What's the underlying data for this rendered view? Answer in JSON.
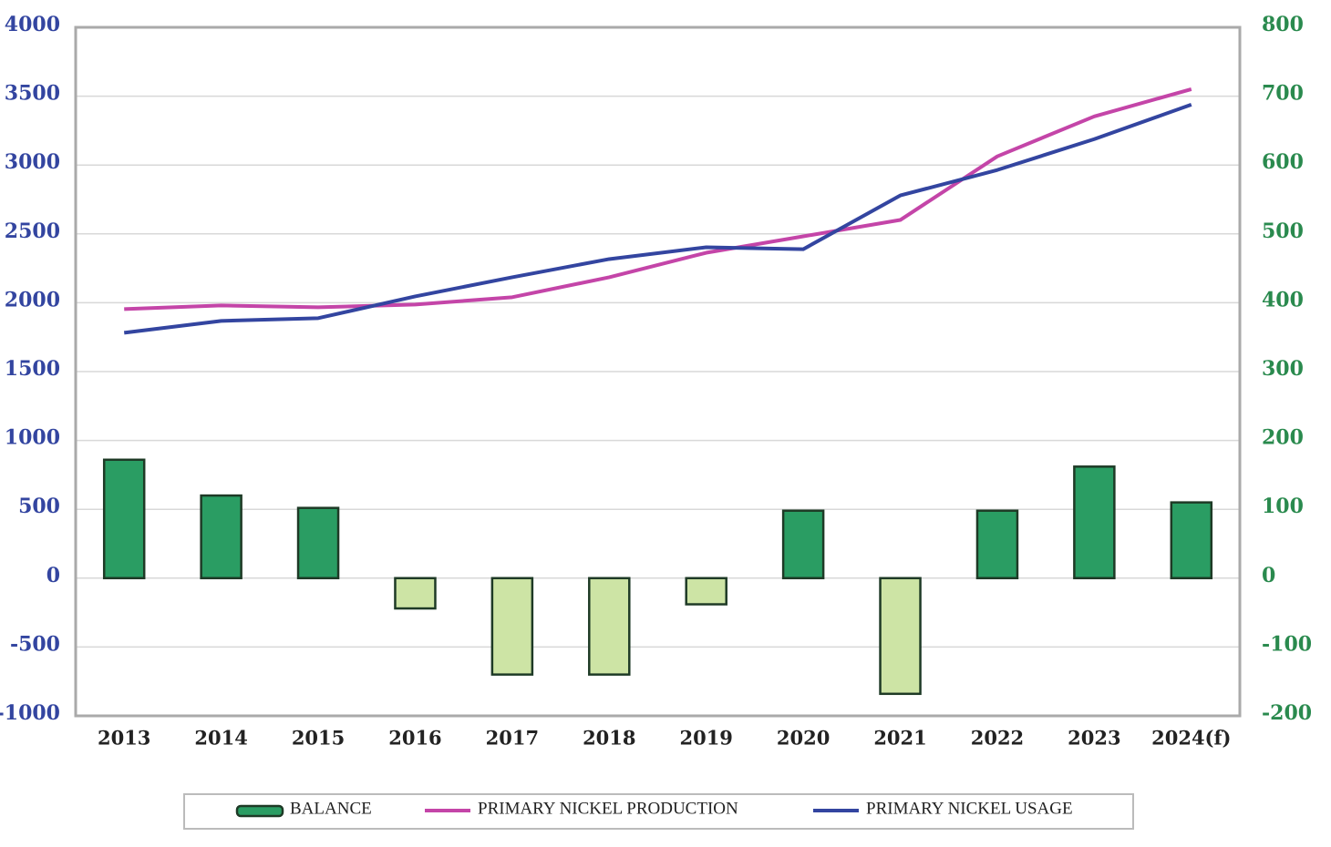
{
  "chart_data": {
    "type": "bar-line",
    "categories": [
      "2013",
      "2014",
      "2015",
      "2016",
      "2017",
      "2018",
      "2019",
      "2020",
      "2021",
      "2022",
      "2023",
      "2024(f)"
    ],
    "series": [
      {
        "name": "BALANCE",
        "type": "bar",
        "axis": "y2",
        "color": "#2a9d63",
        "negative_color": "#cde4a5",
        "values": [
          172,
          120,
          102,
          -44,
          -140,
          -140,
          -38,
          98,
          -168,
          98,
          162,
          110
        ]
      },
      {
        "name": "PRIMARY NICKEL PRODUCTION",
        "type": "line",
        "color": "#c445a8",
        "values": [
          1954,
          1980,
          1967,
          1987,
          2040,
          2185,
          2363,
          2482,
          2601,
          3063,
          3353,
          3551
        ]
      },
      {
        "name": "PRIMARY NICKEL USAGE",
        "type": "line",
        "color": "#3345a0",
        "values": [
          1782,
          1868,
          1888,
          2046,
          2185,
          2317,
          2403,
          2389,
          2779,
          2964,
          3188,
          3439
        ]
      }
    ],
    "ylim": [
      -1000,
      4000
    ],
    "yticks": [
      -1000,
      -500,
      0,
      500,
      1000,
      1500,
      2000,
      2500,
      3000,
      3500,
      4000
    ],
    "y2lim": [
      -200,
      800
    ],
    "y2ticks": [
      -200,
      -100,
      0,
      100,
      200,
      300,
      400,
      500,
      600,
      700,
      800
    ],
    "grid": true,
    "legend": "bottom"
  }
}
